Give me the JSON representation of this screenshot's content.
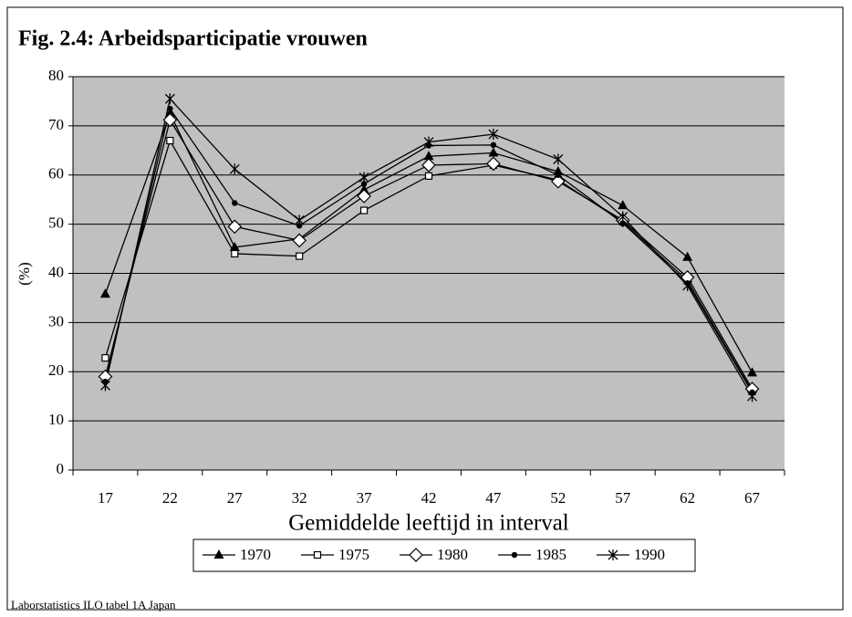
{
  "chart_data": {
    "type": "line",
    "title": "Fig. 2.4: Arbeidsparticipatie vrouwen",
    "x_label": "Gemiddelde leeftijd in interval",
    "y_label": "(%)",
    "source": "Laborstatistics ILO tabel 1A Japan",
    "categories": [
      "17",
      "22",
      "27",
      "32",
      "37",
      "42",
      "47",
      "52",
      "57",
      "62",
      "67"
    ],
    "ylim": [
      0,
      80
    ],
    "yticks": [
      0,
      10,
      20,
      30,
      40,
      50,
      60,
      70,
      80
    ],
    "grid": true,
    "legend": "bottom",
    "series": [
      {
        "name": "1970",
        "color": "#000000",
        "marker": "triangle",
        "values": [
          35.8,
          72.5,
          45.3,
          47,
          57,
          63.8,
          64.5,
          60.7,
          53.8,
          43.3,
          19.8
        ]
      },
      {
        "name": "1975",
        "color": "#000000",
        "marker": "square",
        "values": [
          22.8,
          67,
          44,
          43.5,
          52.8,
          59.8,
          62,
          59,
          50.5,
          38.5,
          16
        ]
      },
      {
        "name": "1980",
        "color": "#000000",
        "marker": "diamond",
        "values": [
          19,
          71.2,
          49.5,
          46.7,
          55.7,
          62,
          62.3,
          58.7,
          50.8,
          39.2,
          16.5
        ]
      },
      {
        "name": "1985",
        "color": "#000000",
        "marker": "circle",
        "values": [
          18,
          73.5,
          54.3,
          49.7,
          58.2,
          66,
          66.1,
          60,
          50.2,
          38,
          15.8
        ]
      },
      {
        "name": "1990",
        "color": "#000000",
        "marker": "star",
        "values": [
          17.2,
          75.5,
          61.2,
          50.8,
          59.5,
          66.7,
          68.3,
          63.2,
          51.5,
          37.5,
          15
        ]
      }
    ]
  }
}
